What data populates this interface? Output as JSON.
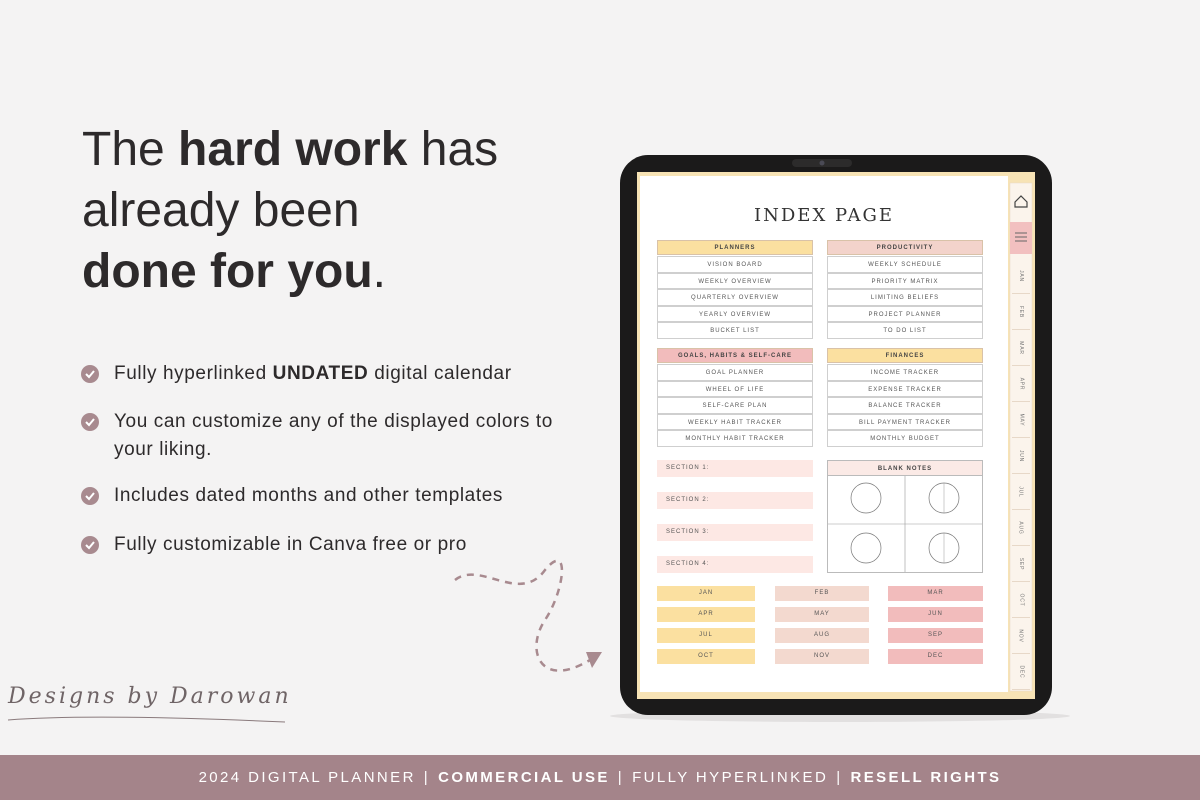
{
  "headline": {
    "lines": [
      [
        {
          "text": "The ",
          "bold": false
        },
        {
          "text": "hard work",
          "bold": true
        },
        {
          "text": " has",
          "bold": false
        }
      ],
      [
        {
          "text": "already been",
          "bold": false
        }
      ],
      [
        {
          "text": "done for you",
          "bold": true
        },
        {
          "text": ".",
          "bold": false
        }
      ]
    ]
  },
  "features": [
    [
      {
        "text": "Fully hyperlinked ",
        "bold": false
      },
      {
        "text": "UNDATED",
        "bold": true
      },
      {
        "text": " digital calendar",
        "bold": false
      }
    ],
    [
      {
        "text": "You can customize any of the displayed colors to your liking.",
        "bold": false
      }
    ],
    [
      {
        "text": "Includes dated months and other templates",
        "bold": false
      }
    ],
    [
      {
        "text": "Fully customizable in Canva free or pro",
        "bold": false
      }
    ]
  ],
  "signature": "Designs by Darowan",
  "planner": {
    "title": "INDEX PAGE",
    "groups": [
      {
        "title": "PLANNERS",
        "items": [
          "VISION BOARD",
          "WEEKLY OVERVIEW",
          "QUARTERLY OVERVIEW",
          "YEARLY OVERVIEW",
          "BUCKET LIST"
        ]
      },
      {
        "title": "PRODUCTIVITY",
        "items": [
          "WEEKLY SCHEDULE",
          "PRIORITY MATRIX",
          "LIMITING BELIEFS",
          "PROJECT PLANNER",
          "TO DO LIST"
        ]
      },
      {
        "title": "GOALS, HABITS & SELF-CARE",
        "items": [
          "GOAL PLANNER",
          "WHEEL OF LIFE",
          "SELF-CARE PLAN",
          "WEEKLY HABIT TRACKER",
          "MONTHLY HABIT TRACKER"
        ]
      },
      {
        "title": "FINANCES",
        "items": [
          "INCOME TRACKER",
          "EXPENSE TRACKER",
          "BALANCE TRACKER",
          "BILL PAYMENT TRACKER",
          "MONTHLY BUDGET"
        ]
      }
    ],
    "sections": [
      "SECTION 1:",
      "SECTION 2:",
      "SECTION 3:",
      "SECTION 4:"
    ],
    "blank_notes": "BLANK NOTES",
    "months": [
      "JAN",
      "FEB",
      "MAR",
      "APR",
      "MAY",
      "JUN",
      "JUL",
      "AUG",
      "SEP",
      "OCT",
      "NOV",
      "DEC"
    ]
  },
  "footer": {
    "items": [
      {
        "text": "2024 DIGITAL PLANNER",
        "bold": false
      },
      {
        "text": "COMMERCIAL USE",
        "bold": true
      },
      {
        "text": "FULLY HYPERLINKED",
        "bold": false
      },
      {
        "text": "RESELL RIGHTS",
        "bold": true
      }
    ],
    "separator": "|"
  }
}
